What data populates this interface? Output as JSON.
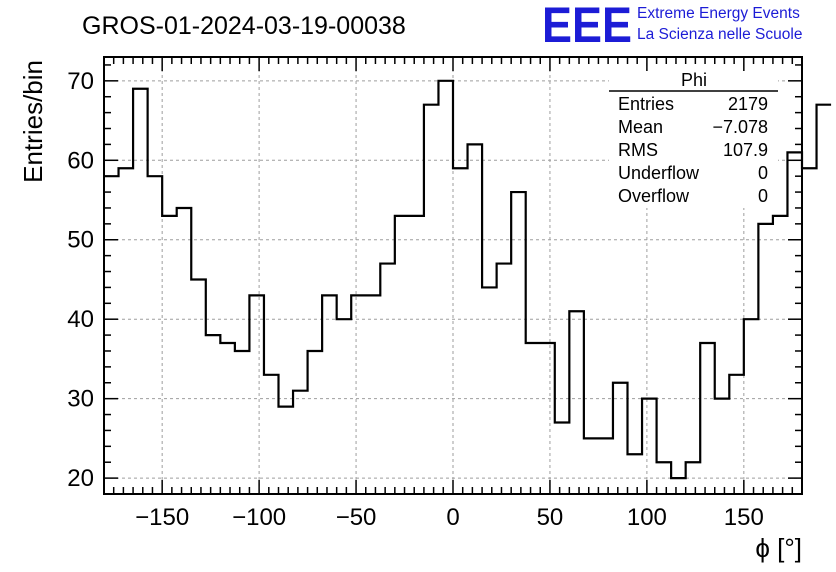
{
  "chart_data": {
    "type": "bar",
    "histogram": true,
    "title": "GROS-01-2024-03-19-00038",
    "xlabel": "ϕ [°]",
    "ylabel": "Entries/bin",
    "xlim": [
      -180,
      180
    ],
    "ylim": [
      18,
      73
    ],
    "x_ticks": [
      -150,
      -100,
      -50,
      0,
      50,
      100,
      150
    ],
    "y_ticks": [
      20,
      30,
      40,
      50,
      60,
      70
    ],
    "grid": true,
    "bin_width": 7.5,
    "values": [
      58,
      59,
      69,
      58,
      53,
      54,
      45,
      38,
      37,
      36,
      43,
      33,
      29,
      31,
      36,
      43,
      40,
      43,
      43,
      47,
      53,
      53,
      67,
      70,
      59,
      62,
      44,
      47,
      56,
      37,
      37,
      27,
      41,
      25,
      25,
      32,
      23,
      30,
      22,
      20,
      22,
      37,
      30,
      33,
      40,
      52,
      53,
      61,
      59,
      67
    ],
    "stats_box": {
      "title": "Phi",
      "rows": [
        {
          "label": "Entries",
          "value": "2179"
        },
        {
          "label": "Mean",
          "value": "−7.078"
        },
        {
          "label": "RMS",
          "value": "107.9"
        },
        {
          "label": "Underflow",
          "value": "0"
        },
        {
          "label": "Overflow",
          "value": "0"
        }
      ]
    }
  },
  "logo": {
    "mark": "EEE",
    "line1": "Extreme Energy Events",
    "line2": "La Scienza nelle Scuole",
    "color": "#1c1cd6"
  }
}
